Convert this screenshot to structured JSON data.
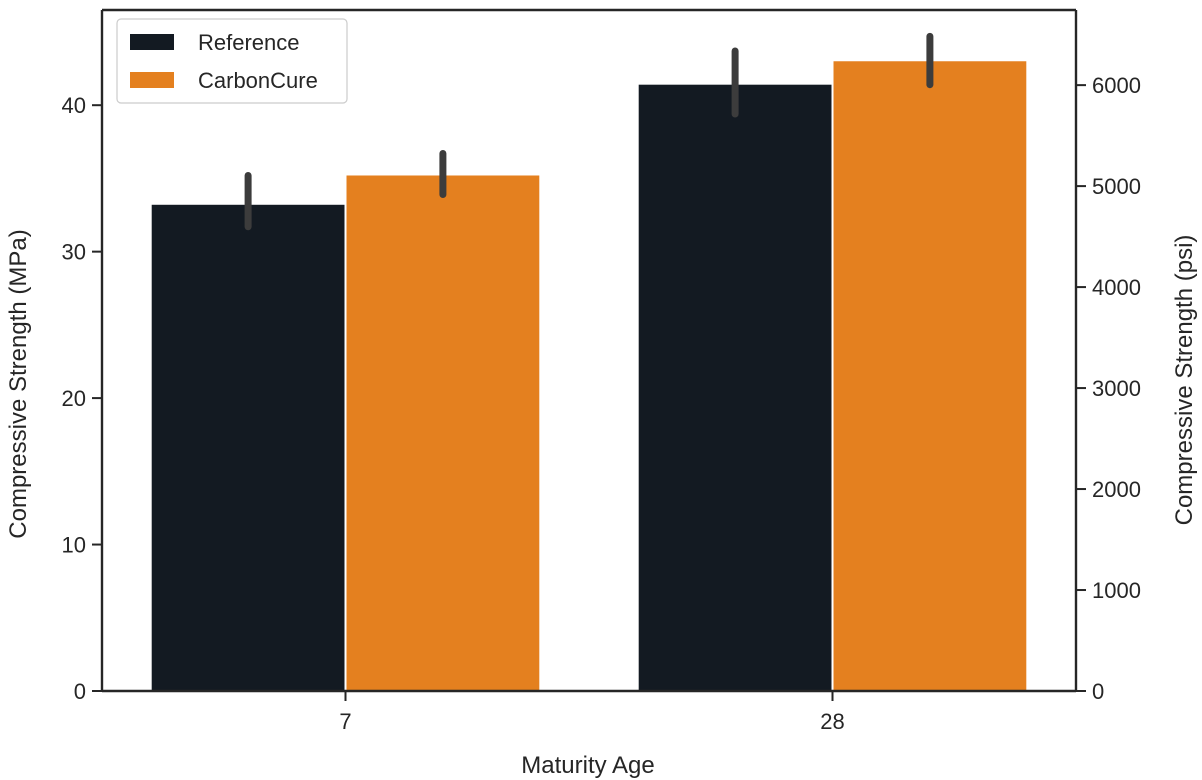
{
  "chart_data": {
    "type": "bar",
    "title": "",
    "xlabel": "Maturity Age",
    "ylabel": "Compressive Strength (MPa)",
    "y2label": "Compressive Strength (psi)",
    "categories": [
      "7",
      "28"
    ],
    "series": [
      {
        "name": "Reference",
        "color": "#131a22",
        "values": [
          33.2,
          41.4
        ],
        "err_low": [
          31.7,
          39.4
        ],
        "err_high": [
          35.2,
          43.7
        ]
      },
      {
        "name": "CarbonCure",
        "color": "#e4801f",
        "values": [
          35.2,
          43.0
        ],
        "err_low": [
          33.9,
          41.4
        ],
        "err_high": [
          36.7,
          44.7
        ]
      }
    ],
    "ylim": [
      0,
      46.5
    ],
    "yticks": [
      0,
      10,
      20,
      30,
      40
    ],
    "y2lim": [
      0,
      6744
    ],
    "y2ticks": [
      0,
      1000,
      2000,
      3000,
      4000,
      5000,
      6000
    ],
    "legend_position": "top-left",
    "grid": false,
    "errorbar_color": "#3c3c3c"
  }
}
